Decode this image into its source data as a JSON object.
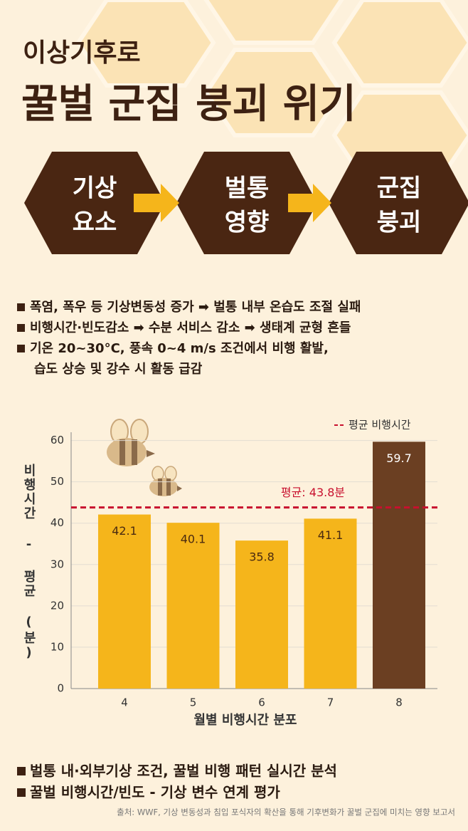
{
  "header": {
    "title_lines": [
      "이상기후로",
      "꿀벌 군집 붕괴 위기"
    ]
  },
  "flow": {
    "nodes": [
      {
        "lines": [
          "기상",
          "요소"
        ]
      },
      {
        "lines": [
          "벌통",
          "영향"
        ]
      },
      {
        "lines": [
          "군집",
          "붕괴"
        ]
      }
    ]
  },
  "bullets": [
    {
      "lines": [
        "폭염, 폭우 등 기상변동성 증가 ➡ 벌통 내부 온습도 조절 실패"
      ]
    },
    {
      "lines": [
        "비행시간·빈도감소 ➡ 수분 서비스 감소 ➡ 생태계 균형 흔들"
      ]
    },
    {
      "lines": [
        "기온 20~30°C, 풍속 0~4 m/s 조건에서 비행 활발,",
        "습도 상승 및 강수 시 활동 급감"
      ]
    }
  ],
  "chart_data": {
    "type": "bar",
    "categories": [
      "4",
      "5",
      "6",
      "7",
      "8"
    ],
    "values": [
      42.1,
      40.1,
      35.8,
      41.1,
      59.7
    ],
    "colors": [
      "#f5b51b",
      "#f5b51b",
      "#f5b51b",
      "#f5b51b",
      "#6b3f22"
    ],
    "x_label": "월별 비행시간 분포",
    "y_label": "비행시간 - 평균 (분)",
    "ylim": [
      0,
      62
    ],
    "yticks": [
      0,
      10,
      20,
      30,
      40,
      50,
      60
    ],
    "grid": true,
    "average": {
      "value": 43.8,
      "label": "평균: 43.8분",
      "color": "#c8102e"
    },
    "legend": {
      "text": "평균 비행시간",
      "position": "top-right"
    }
  },
  "footer": {
    "bullets": [
      "벌통 내·외부기상 조건, 꿀벌 비행 패턴 실시간 분석",
      "꿀벌 비행시간/빈도 - 기상 변수 연계 평가"
    ],
    "source": "출처: WWF, 기상 변동성과 침입 포식자의 확산을 통해 기후변화가 꿀벌 군집에 미치는 영향 보고서"
  }
}
